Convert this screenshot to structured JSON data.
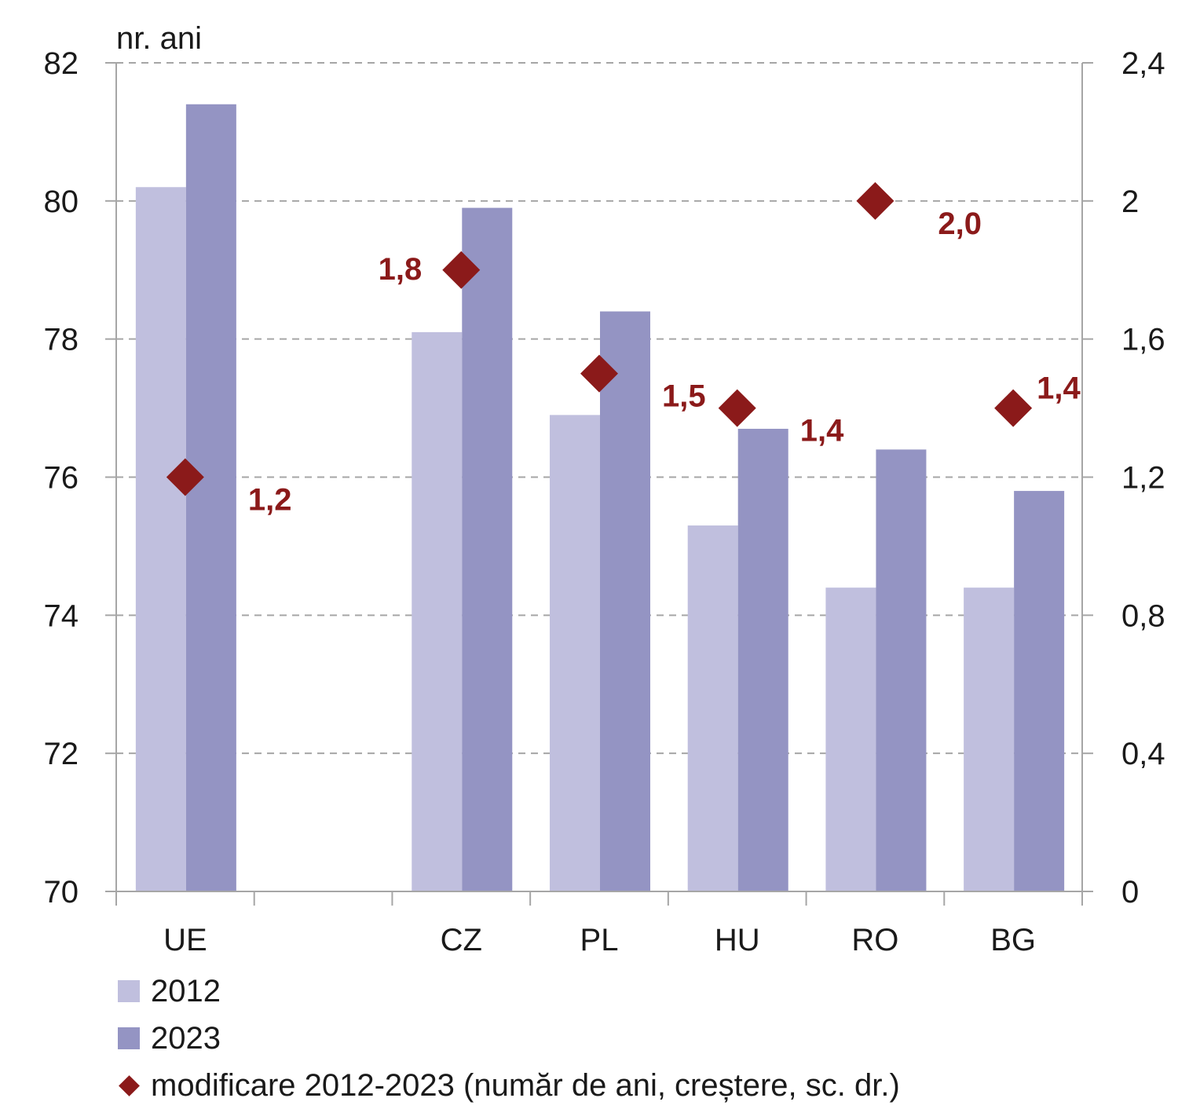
{
  "chart_data": {
    "type": "bar",
    "title": "",
    "ylabel": "nr. ani",
    "categories": [
      "UE",
      "",
      "CZ",
      "PL",
      "HU",
      "RO",
      "BG"
    ],
    "ylim": [
      70,
      82
    ],
    "yticks": [
      "82",
      "80",
      "78",
      "76",
      "74",
      "72",
      "70"
    ],
    "ytick_values": [
      82,
      80,
      78,
      76,
      74,
      72,
      70
    ],
    "y2lim": [
      0,
      2.4
    ],
    "y2ticks": [
      "2,4",
      "2",
      "1,6",
      "1,2",
      "0,8",
      "0,4",
      "0"
    ],
    "y2tick_values": [
      2.4,
      2.0,
      1.6,
      1.2,
      0.8,
      0.4,
      0
    ],
    "grid": true,
    "series": [
      {
        "name": "2012",
        "kind": "bar",
        "axis": "left",
        "color": "#c0bfde",
        "values": [
          80.2,
          null,
          78.1,
          76.9,
          75.3,
          74.4,
          74.4
        ]
      },
      {
        "name": "2023",
        "kind": "bar",
        "axis": "left",
        "color": "#9494c3",
        "values": [
          81.4,
          null,
          79.9,
          78.4,
          76.7,
          76.4,
          75.8
        ]
      },
      {
        "name": "modificare 2012-2023 (număr de ani, creștere, sc. dr.)",
        "kind": "marker",
        "axis": "right",
        "color": "#8b1a1a",
        "values": [
          1.2,
          null,
          1.8,
          1.5,
          1.4,
          2.0,
          1.4
        ],
        "labels": [
          "1,2",
          "",
          "1,8",
          "1,5",
          "1,4",
          "2,0",
          "1,4"
        ],
        "label_side": [
          "right",
          "",
          "left",
          "right",
          "right",
          "right",
          "right"
        ]
      }
    ],
    "legend_position": "bottom-left"
  }
}
